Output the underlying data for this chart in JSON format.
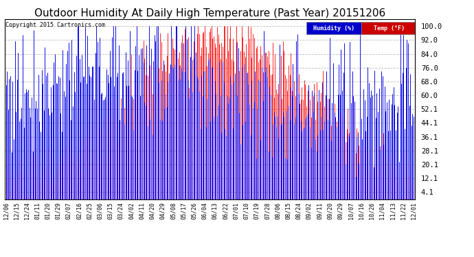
{
  "title": "Outdoor Humidity At Daily High Temperature (Past Year) 20151206",
  "copyright": "Copyright 2015 Cartronics.com",
  "ylabel_right_ticks": [
    4.1,
    12.1,
    20.1,
    28.1,
    36.1,
    44.1,
    52.1,
    60.0,
    68.0,
    76.0,
    84.0,
    92.0,
    100.0
  ],
  "ylim": [
    0,
    104
  ],
  "background_color": "#ffffff",
  "plot_bg_color": "#ffffff",
  "grid_color": "#bbbbbb",
  "humidity_color": "#0000ff",
  "temp_color": "#ff0000",
  "black_color": "#000000",
  "title_fontsize": 11,
  "tick_fontsize": 7.5,
  "legend_humidity_bg": "#0000cc",
  "legend_temp_bg": "#cc0000",
  "x_labels": [
    "12/06",
    "12/15",
    "12/24",
    "01/11",
    "01/20",
    "01/29",
    "02/07",
    "02/16",
    "02/25",
    "03/06",
    "03/15",
    "03/24",
    "04/02",
    "04/11",
    "04/20",
    "04/29",
    "05/08",
    "05/17",
    "05/26",
    "06/04",
    "06/13",
    "06/22",
    "07/01",
    "07/10",
    "07/19",
    "07/28",
    "08/06",
    "08/15",
    "08/24",
    "09/02",
    "09/11",
    "09/20",
    "09/29",
    "10/07",
    "10/16",
    "10/26",
    "11/04",
    "11/13",
    "11/22",
    "12/01"
  ],
  "n_days": 366,
  "temp_seed": 10,
  "hum_seed": 77
}
